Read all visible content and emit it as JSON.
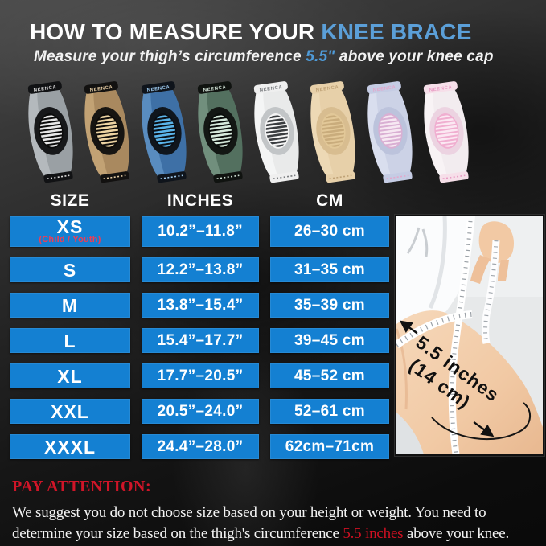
{
  "header": {
    "title_white": "HOW TO MEASURE YOUR ",
    "title_blue": "KNEE BRACE",
    "subtitle_pre": "Measure your thigh’s circumference ",
    "subtitle_highlight": "5.5\"",
    "subtitle_post": " above your knee cap",
    "accent_blue": "#5b9fd8"
  },
  "products": {
    "brand": "NEENCA",
    "items": [
      {
        "name": "gray-black",
        "knit": "#9aa0a4",
        "knit2": "#cdd2d5",
        "frame": "#17181a",
        "pad": "#0c0c0c",
        "stripe": "#e8e8e8",
        "band": "#111214",
        "bandText": "#d8d8d8"
      },
      {
        "name": "bronze-brown",
        "knit": "#a9895f",
        "knit2": "#dcbb8a",
        "frame": "#171512",
        "pad": "#0e0c0a",
        "stripe": "#ecd3a2",
        "band": "#121110",
        "bandText": "#e0c8a0"
      },
      {
        "name": "blue",
        "knit": "#3e70a6",
        "knit2": "#74a8d8",
        "frame": "#10161d",
        "pad": "#0a0e14",
        "stripe": "#5ab4ea",
        "band": "#0f141b",
        "bandText": "#9cc8ec"
      },
      {
        "name": "green-teal",
        "knit": "#53705f",
        "knit2": "#8fae9c",
        "frame": "#131714",
        "pad": "#0b0e0c",
        "stripe": "#d6eadc",
        "band": "#101310",
        "bandText": "#cfe0d4"
      },
      {
        "name": "white-gray",
        "knit": "#e9eaea",
        "knit2": "#ffffff",
        "frame": "#c2c5c7",
        "pad": "#f4f4f4",
        "stripe": "#3a3d40",
        "band": "#efefef",
        "bandText": "#7a7d80"
      },
      {
        "name": "beige",
        "knit": "#e7d0a9",
        "knit2": "#f3e2c2",
        "frame": "#d8bd90",
        "pad": "#e2c898",
        "stripe": "#c9ac7c",
        "band": "#e7d0a9",
        "bandText": "#bfa276"
      },
      {
        "name": "lavender-pink",
        "knit": "#ccd2e6",
        "knit2": "#e6eaf6",
        "frame": "#bcc3dc",
        "pad": "#d9afd3",
        "stripe": "#f6e8f2",
        "band": "#c5cce4",
        "bandText": "#e2a8cc"
      },
      {
        "name": "pink-white",
        "knit": "#f2ecef",
        "knit2": "#fdfafc",
        "frame": "#ecd3e1",
        "pad": "#f0aed0",
        "stripe": "#fbe8f2",
        "band": "#f6dfe9",
        "bandText": "#e89cc4"
      }
    ]
  },
  "size_table": {
    "columns": [
      "SIZE",
      "INCHES",
      "CM"
    ],
    "cell_color": "#1480d2",
    "rows": [
      {
        "size": "XS",
        "note": "(Child / Youth)",
        "inches": "10.2”–11.8”",
        "cm": "26–30 cm"
      },
      {
        "size": "S",
        "inches": "12.2”–13.8”",
        "cm": "31–35 cm"
      },
      {
        "size": "M",
        "inches": "13.8”–15.4”",
        "cm": "35–39 cm"
      },
      {
        "size": "L",
        "inches": "15.4”–17.7”",
        "cm": "39–45 cm"
      },
      {
        "size": "XL",
        "inches": "17.7”–20.5”",
        "cm": "45–52 cm"
      },
      {
        "size": "XXL",
        "inches": "20.5”–24.0”",
        "cm": "52–61 cm"
      },
      {
        "size": "XXXL",
        "inches": "24.4”–28.0”",
        "cm": "62cm–71cm"
      }
    ]
  },
  "photo": {
    "annotation_line1": "5.5 inches",
    "annotation_line2": "(14 cm)"
  },
  "footer": {
    "attention_label": "PAY ATTENTION:",
    "attention_color": "#cf1528",
    "body_line1": "We suggest you do not choose size based on your height or weight. You need to",
    "body_line2_pre": "determine your size based on the thigh's circumference ",
    "body_highlight": "5.5 inches",
    "body_line2_post": " above your knee."
  },
  "chart_data": {
    "type": "table",
    "title": "HOW TO MEASURE YOUR KNEE BRACE",
    "subtitle": "Measure your thigh’s circumference 5.5\" above your knee cap",
    "columns": [
      "SIZE",
      "INCHES",
      "CM"
    ],
    "rows": [
      [
        "XS (Child / Youth)",
        "10.2”–11.8”",
        "26–30 cm"
      ],
      [
        "S",
        "12.2”–13.8”",
        "31–35 cm"
      ],
      [
        "M",
        "13.8”–15.4”",
        "35–39 cm"
      ],
      [
        "L",
        "15.4”–17.7”",
        "39–45 cm"
      ],
      [
        "XL",
        "17.7”–20.5”",
        "45–52 cm"
      ],
      [
        "XXL",
        "20.5”–24.0”",
        "52–61 cm"
      ],
      [
        "XXXL",
        "24.4”–28.0”",
        "62cm–71cm"
      ]
    ],
    "annotation": "5.5 inches (14 cm)"
  }
}
